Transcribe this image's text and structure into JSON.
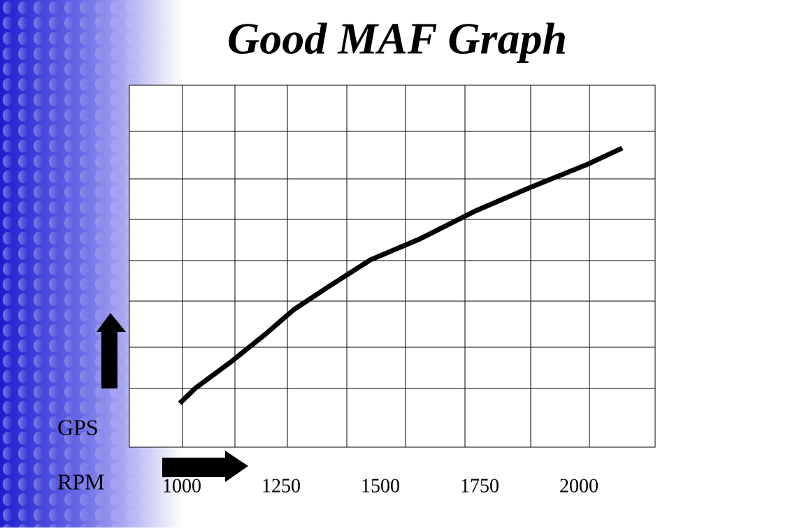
{
  "chart_data": {
    "type": "line",
    "title": "Good MAF Graph",
    "y_label": "GPS",
    "x_label": "RPM",
    "x": [
      995,
      1035,
      1123,
      1211,
      1282,
      1370,
      1475,
      1599,
      1739,
      1880,
      2021,
      2109
    ],
    "series": [
      {
        "color": "#000000",
        "values": [
          0.97,
          1.31,
          1.88,
          2.5,
          3.04,
          3.55,
          4.14,
          4.6,
          5.22,
          5.75,
          6.25,
          6.61
        ]
      }
    ],
    "xlim": [
      868,
      2192
    ],
    "ylim": [
      0,
      8
    ],
    "xticks": [
      1000,
      1250,
      1500,
      1750,
      2000
    ]
  }
}
